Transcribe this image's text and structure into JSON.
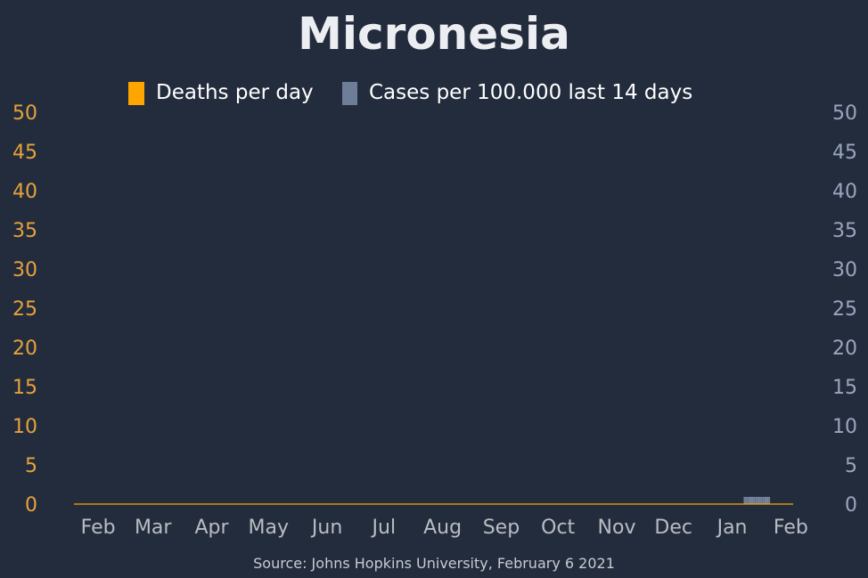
{
  "chart_data": {
    "type": "bar",
    "title": "Micronesia",
    "source": "Source: Johns Hopkins University, February 6 2021",
    "legend": [
      {
        "label": "Deaths per day",
        "color": "#ffa500"
      },
      {
        "label": "Cases per 100.000 last 14 days",
        "color": "#6e7e98"
      }
    ],
    "legend_position": "top-center",
    "grid": false,
    "y_left": {
      "ticks": [
        "0",
        "5",
        "10",
        "15",
        "20",
        "25",
        "30",
        "35",
        "40",
        "45",
        "50"
      ],
      "ylim": [
        0,
        50
      ],
      "color": "#e6a23c"
    },
    "y_right": {
      "ticks": [
        "0",
        "5",
        "10",
        "15",
        "20",
        "25",
        "30",
        "35",
        "40",
        "45",
        "50"
      ],
      "ylim": [
        0,
        50
      ],
      "color": "#9aa6bf"
    },
    "x_ticks": [
      "Feb",
      "Mar",
      "Apr",
      "May",
      "Jun",
      "Jul",
      "Aug",
      "Sep",
      "Oct",
      "Nov",
      "Dec",
      "Jan",
      "Feb"
    ],
    "x_range": [
      "2020-01-23",
      "2021-02-06"
    ],
    "x_tick_dates": [
      "2020-02-01",
      "2020-03-01",
      "2020-04-01",
      "2020-05-01",
      "2020-06-01",
      "2020-07-01",
      "2020-08-01",
      "2020-09-01",
      "2020-10-01",
      "2020-11-01",
      "2020-12-01",
      "2021-01-01",
      "2021-02-01"
    ],
    "series": [
      {
        "name": "Deaths per day",
        "axis": "left",
        "style": "line",
        "color": "#ffa500",
        "x": [
          "2020-01-23",
          "2021-02-06"
        ],
        "values": [
          0,
          0
        ]
      },
      {
        "name": "Cases per 100.000 last 14 days",
        "axis": "right",
        "style": "bars",
        "color": "#6e7e98",
        "x": [
          "2021-01-11",
          "2021-01-12",
          "2021-01-13",
          "2021-01-14",
          "2021-01-15",
          "2021-01-16",
          "2021-01-17",
          "2021-01-18",
          "2021-01-19",
          "2021-01-20",
          "2021-01-21",
          "2021-01-22",
          "2021-01-23",
          "2021-01-24"
        ],
        "values": [
          0.9,
          0.9,
          0.9,
          0.9,
          0.9,
          0.9,
          0.9,
          0.9,
          0.9,
          0.9,
          0.9,
          0.9,
          0.9,
          0.9
        ]
      }
    ]
  }
}
